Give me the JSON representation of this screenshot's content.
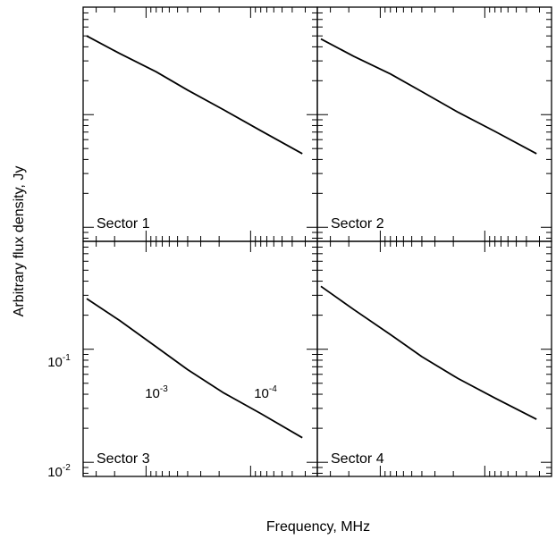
{
  "chart_data": {
    "type": "line",
    "xlabel": "Frequency, MHz",
    "ylabel": "Arbitrary flux density, Jy",
    "x_axis": {
      "scale": "log",
      "reversed": true,
      "range": [
        0.004,
        2.3e-05
      ]
    },
    "y_axis": {
      "scale": "log",
      "range": [
        0.0075,
        0.9
      ]
    },
    "y_ticks_labelled": [
      {
        "value": 0.1,
        "base": "10",
        "exp": "-1"
      },
      {
        "value": 0.01,
        "base": "10",
        "exp": "-2"
      }
    ],
    "x_ticks_labelled": [
      {
        "value": 0.001,
        "base": "10",
        "exp": "-3"
      },
      {
        "value": 0.0001,
        "base": "10",
        "exp": "-4"
      }
    ],
    "panels": [
      {
        "label": "Sector 1",
        "series": [
          {
            "x": [
              0.0037,
              0.0018,
              0.0008,
              0.0004,
              0.00018,
              8e-05,
              3.2e-05
            ],
            "y": [
              0.5,
              0.35,
              0.24,
              0.165,
              0.11,
              0.072,
              0.045
            ]
          }
        ]
      },
      {
        "label": "Sector 2",
        "series": [
          {
            "x": [
              0.0037,
              0.0018,
              0.0008,
              0.0004,
              0.00018,
              8e-05,
              3.2e-05
            ],
            "y": [
              0.47,
              0.33,
              0.23,
              0.16,
              0.105,
              0.071,
              0.045
            ]
          }
        ]
      },
      {
        "label": "Sector 3",
        "series": [
          {
            "x": [
              0.0037,
              0.0018,
              0.0008,
              0.0004,
              0.00018,
              8e-05,
              3.2e-05
            ],
            "y": [
              0.28,
              0.18,
              0.105,
              0.066,
              0.041,
              0.027,
              0.0165
            ]
          }
        ]
      },
      {
        "label": "Sector 4",
        "series": [
          {
            "x": [
              0.0037,
              0.0018,
              0.0008,
              0.0004,
              0.00018,
              8e-05,
              3.2e-05
            ],
            "y": [
              0.36,
              0.225,
              0.135,
              0.086,
              0.055,
              0.037,
              0.024
            ]
          }
        ]
      }
    ]
  }
}
